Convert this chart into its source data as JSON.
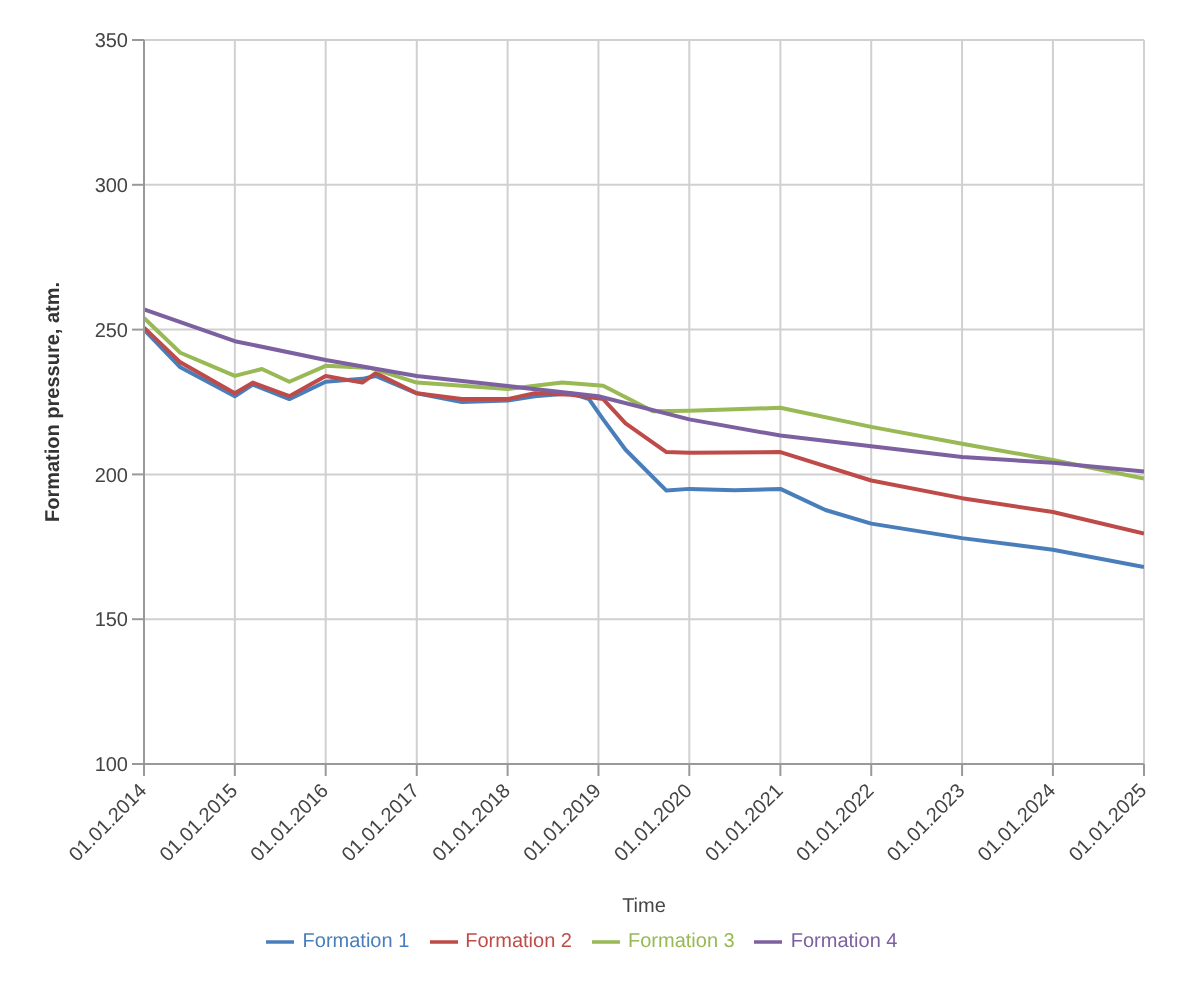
{
  "chart_data": {
    "type": "line",
    "xlabel": "Time",
    "ylabel": "Formation pressure, atm.",
    "xlim": [
      "2014-01-01",
      "2025-01-01"
    ],
    "ylim": [
      100,
      350
    ],
    "xticks": [
      {
        "value": "2014-01-01",
        "label": "01.01.2014"
      },
      {
        "value": "2015-01-01",
        "label": "01.01.2015"
      },
      {
        "value": "2016-01-01",
        "label": "01.01.2016"
      },
      {
        "value": "2017-01-01",
        "label": "01.01.2017"
      },
      {
        "value": "2018-01-01",
        "label": "01.01.2018"
      },
      {
        "value": "2019-01-01",
        "label": "01.01.2019"
      },
      {
        "value": "2020-01-01",
        "label": "01.01.2020"
      },
      {
        "value": "2021-01-01",
        "label": "01.01.2021"
      },
      {
        "value": "2022-01-01",
        "label": "01.01.2022"
      },
      {
        "value": "2023-01-01",
        "label": "01.01.2023"
      },
      {
        "value": "2024-01-01",
        "label": "01.01.2024"
      },
      {
        "value": "2025-01-01",
        "label": "01.01.2025"
      }
    ],
    "yticks": [
      100,
      150,
      200,
      250,
      300,
      350
    ],
    "grid": true,
    "legend": "bottom",
    "marker": "none",
    "line_style": "solid",
    "series": [
      {
        "name": "Formation 1",
        "color": "#4a7ebb",
        "x": [
          "2014-01-01",
          "2014-05-27",
          "2015-01-01",
          "2015-03-14",
          "2015-08-08",
          "2016-01-01",
          "2016-05-27",
          "2016-07-20",
          "2017-01-01",
          "2017-07-01",
          "2018-01-01",
          "2018-04-20",
          "2018-09-13",
          "2018-11-24",
          "2019-01-20",
          "2019-04-20",
          "2019-10-01",
          "2020-01-01",
          "2020-07-01",
          "2021-01-01",
          "2021-07-01",
          "2022-01-01",
          "2023-01-01",
          "2024-01-01",
          "2025-01-01"
        ],
        "values": [
          250,
          237,
          227,
          231,
          226,
          232,
          233,
          234,
          228,
          225,
          225.5,
          227,
          228,
          226,
          219,
          208.5,
          194.4,
          195,
          194.5,
          195,
          187.7,
          183,
          178,
          174,
          168
        ]
      },
      {
        "name": "Formation 2",
        "color": "#be4b48",
        "x": [
          "2014-01-01",
          "2014-05-27",
          "2015-01-01",
          "2015-03-14",
          "2015-08-08",
          "2016-01-01",
          "2016-05-27",
          "2016-07-20",
          "2017-01-01",
          "2017-07-01",
          "2018-01-01",
          "2018-04-20",
          "2018-09-13",
          "2019-01-20",
          "2019-04-20",
          "2019-10-01",
          "2020-01-01",
          "2021-01-01",
          "2022-01-01",
          "2023-01-01",
          "2024-01-01",
          "2025-01-01"
        ],
        "values": [
          250.7,
          238.7,
          228,
          231.7,
          227,
          234,
          231.7,
          235,
          228,
          226,
          226,
          228,
          227.5,
          226,
          217.6,
          207.7,
          207.5,
          207.7,
          197.9,
          191.8,
          187,
          179.6
        ]
      },
      {
        "name": "Formation 3",
        "color": "#98b954",
        "x": [
          "2014-01-01",
          "2014-05-27",
          "2015-01-01",
          "2015-04-20",
          "2015-08-08",
          "2016-01-01",
          "2016-07-01",
          "2017-01-01",
          "2018-01-01",
          "2018-08-08",
          "2019-01-20",
          "2019-08-08",
          "2020-01-01",
          "2021-01-01",
          "2022-01-01",
          "2023-01-01",
          "2024-01-01",
          "2025-01-01"
        ],
        "values": [
          254,
          242,
          234,
          236.4,
          232,
          237.5,
          236.7,
          231.7,
          229.5,
          231.7,
          230.6,
          221.8,
          222,
          223,
          216.4,
          210.6,
          205,
          198.6
        ]
      },
      {
        "name": "Formation 4",
        "color": "#7d60a0",
        "x": [
          "2014-01-01",
          "2015-01-01",
          "2016-01-01",
          "2017-01-01",
          "2018-01-01",
          "2019-01-01",
          "2020-01-01",
          "2021-01-01",
          "2022-01-01",
          "2023-01-01",
          "2024-01-01",
          "2025-01-01"
        ],
        "values": [
          257,
          246,
          239.5,
          234,
          230.5,
          227,
          219,
          213.4,
          209.7,
          206,
          204,
          201
        ]
      }
    ]
  }
}
